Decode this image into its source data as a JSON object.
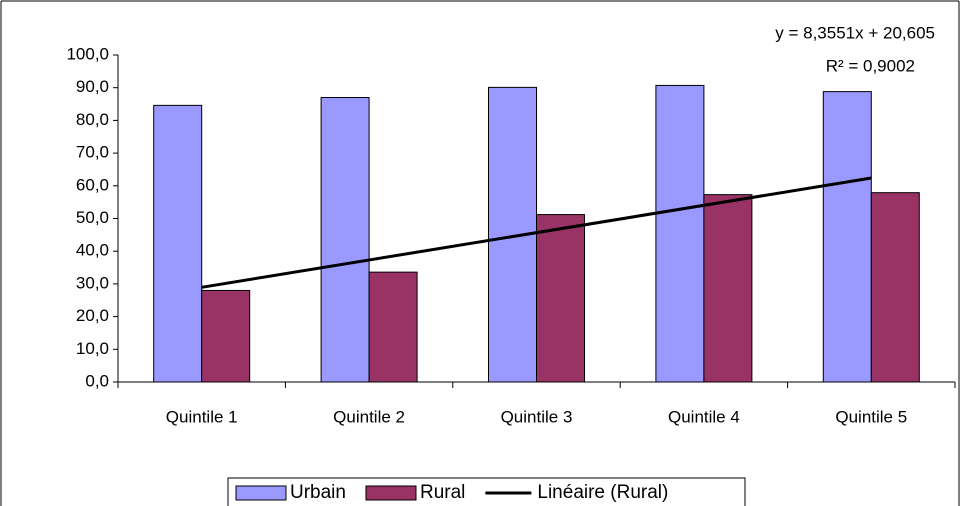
{
  "chart_data": {
    "type": "bar",
    "categories": [
      "Quintile 1",
      "Quintile 2",
      "Quintile 3",
      "Quintile 4",
      "Quintile 5"
    ],
    "series": [
      {
        "name": "Urbain",
        "color": "#9999ff",
        "values": [
          84.6,
          87.0,
          90.1,
          90.7,
          88.8
        ]
      },
      {
        "name": "Rural",
        "color": "#993366",
        "values": [
          28.0,
          33.6,
          51.2,
          57.3,
          57.9
        ]
      }
    ],
    "trendline": {
      "name": "Linéaire (Rural)",
      "color": "#000000",
      "slope": 8.3551,
      "intercept": 20.605,
      "equation_label": "y = 8,3551x + 20,605",
      "r2_label": "R² = 0,9002"
    },
    "ylim": [
      0,
      100
    ],
    "yticks": [
      {
        "value": 0,
        "label": "0,0"
      },
      {
        "value": 10,
        "label": "10,0"
      },
      {
        "value": 20,
        "label": "20,0"
      },
      {
        "value": 30,
        "label": "30,0"
      },
      {
        "value": 40,
        "label": "40,0"
      },
      {
        "value": 50,
        "label": "50,0"
      },
      {
        "value": 60,
        "label": "60,0"
      },
      {
        "value": 70,
        "label": "70,0"
      },
      {
        "value": 80,
        "label": "80,0"
      },
      {
        "value": 90,
        "label": "90,0"
      },
      {
        "value": 100,
        "label": "100,0"
      }
    ],
    "grid": false,
    "legend": "bottom"
  }
}
